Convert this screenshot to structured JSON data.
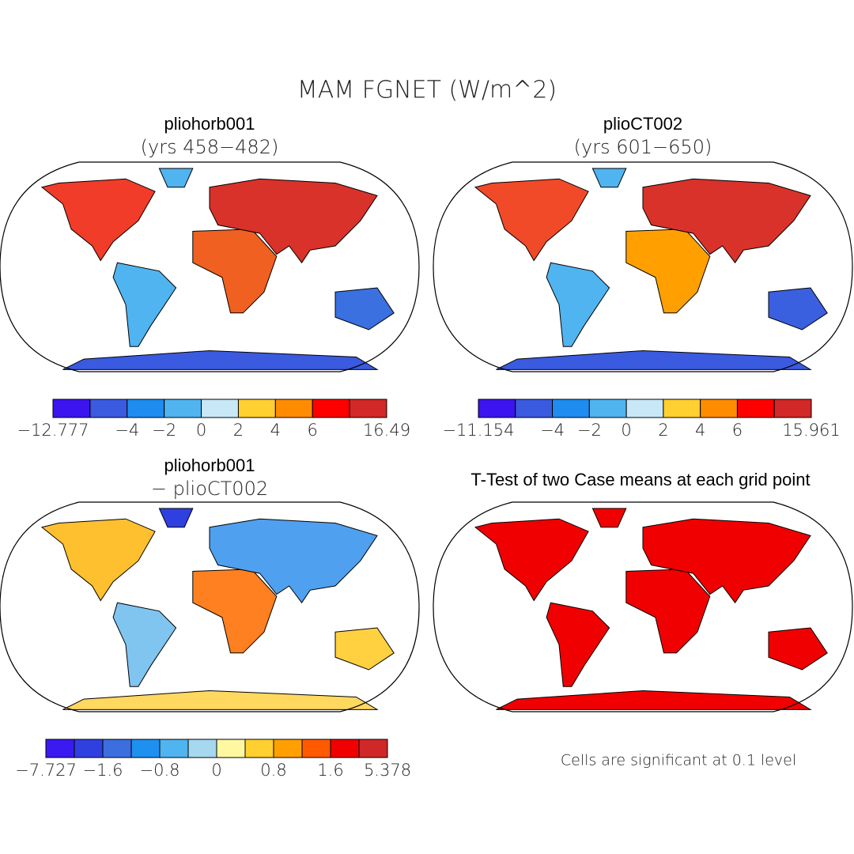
{
  "title": "MAM FGNET (W/m^2)",
  "panels": [
    {
      "title": "pliohorb001",
      "subtitle": "(yrs 458−482)",
      "colorbar": {
        "colors": [
          "#3c14f0",
          "#3a5ae0",
          "#1e8cf0",
          "#50b4f0",
          "#c8e8f8",
          "#ffd030",
          "#ff8c00",
          "#ff0000",
          "#d22828"
        ],
        "labels": [
          "−12.777",
          null,
          "−4",
          "−2",
          "0",
          "2",
          "4",
          "6",
          null,
          "16.49"
        ]
      }
    },
    {
      "title": "plioCT002",
      "subtitle": "(yrs 601−650)",
      "colorbar": {
        "colors": [
          "#3c14f0",
          "#3a5ae0",
          "#1e8cf0",
          "#50b4f0",
          "#c8e8f8",
          "#ffd030",
          "#ff8c00",
          "#ff0000",
          "#d22828"
        ],
        "labels": [
          "−11.154",
          null,
          "−4",
          "−2",
          "0",
          "2",
          "4",
          "6",
          null,
          "15.961"
        ]
      }
    },
    {
      "title": "pliohorb001",
      "subtitle": "− plioCT002",
      "colorbar": {
        "colors": [
          "#3a1af0",
          "#3040e0",
          "#3c6ee0",
          "#1e90f0",
          "#50b4f0",
          "#a6d8f0",
          "#fff8a0",
          "#ffd030",
          "#ffa000",
          "#ff5a00",
          "#f00000",
          "#d02828"
        ],
        "labels": [
          "−7.727",
          null,
          "−1.6",
          null,
          "−0.8",
          null,
          "0",
          null,
          "0.8",
          null,
          "1.6",
          null,
          "5.378"
        ]
      }
    },
    {
      "title": "T-Test of two Case means at each grid point",
      "note": "Cells are significant at 0.1 level"
    }
  ]
}
